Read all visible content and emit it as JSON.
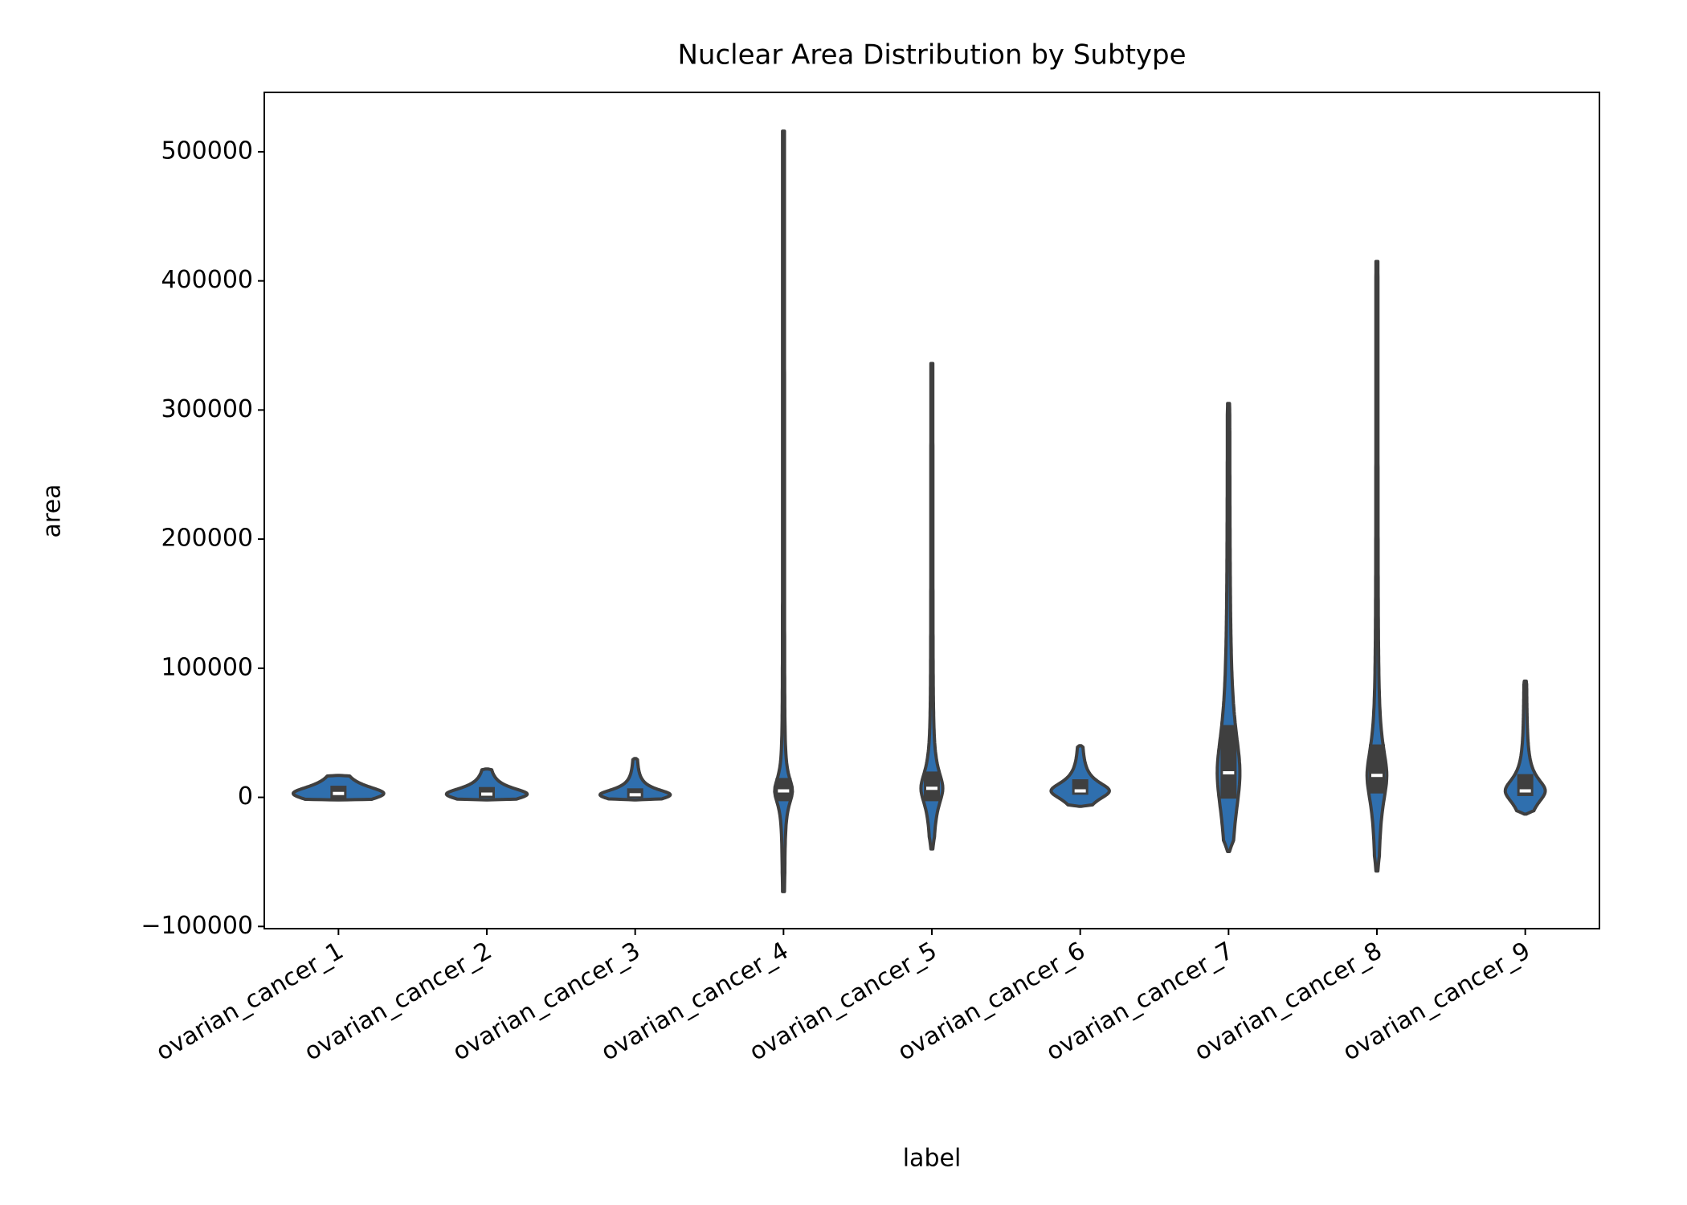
{
  "chart_data": {
    "type": "violin",
    "title": "Nuclear Area Distribution by Subtype",
    "x_label": "label",
    "y_label": "area",
    "categories": [
      "ovarian_cancer_1",
      "ovarian_cancer_2",
      "ovarian_cancer_3",
      "ovarian_cancer_4",
      "ovarian_cancer_5",
      "ovarian_cancer_6",
      "ovarian_cancer_7",
      "ovarian_cancer_8",
      "ovarian_cancer_9"
    ],
    "min": [
      -2000,
      -2000,
      -2000,
      -73000,
      -40000,
      -7000,
      -42000,
      -57000,
      -13000
    ],
    "q1": [
      -1000,
      -500,
      -500,
      -3000,
      -3000,
      2000,
      -1000,
      3000,
      1000
    ],
    "median": [
      3000,
      2500,
      2000,
      5000,
      7000,
      5000,
      19000,
      17000,
      5000
    ],
    "q3": [
      9000,
      8000,
      7000,
      15000,
      20000,
      14000,
      56000,
      41000,
      18000
    ],
    "max": [
      17000,
      22000,
      30000,
      516000,
      336000,
      40000,
      305000,
      415000,
      90000
    ],
    "color": "#2f6fae",
    "ylim": [
      -101700,
      546000
    ],
    "yticks": [
      {
        "value": -100000,
        "label": "−100000"
      },
      0,
      100000,
      200000,
      300000,
      400000,
      500000
    ],
    "grid": false
  }
}
